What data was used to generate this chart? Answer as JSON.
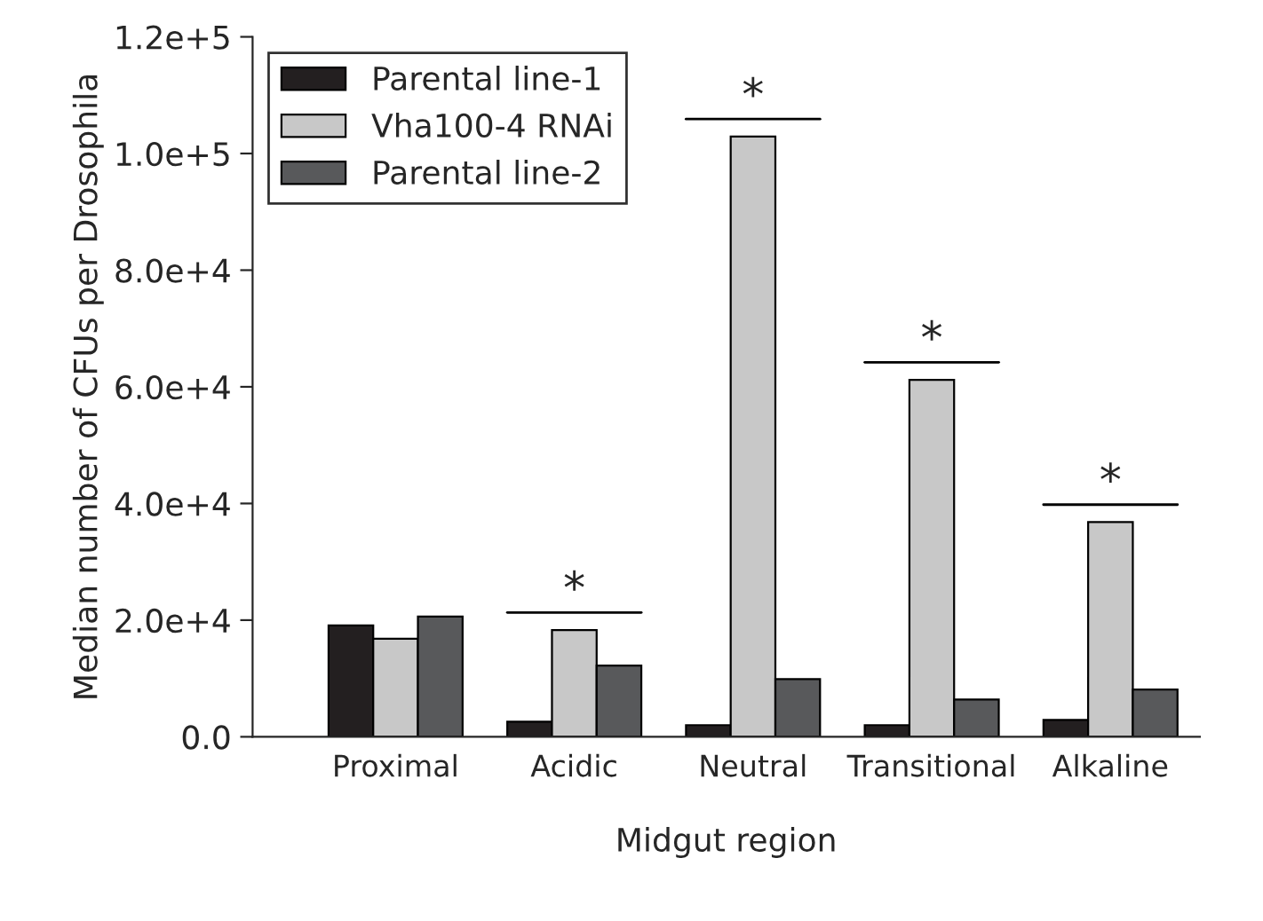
{
  "chart_data": {
    "type": "bar",
    "xlabel": "Midgut region",
    "ylabel": "Median number of CFUs per Drosophila",
    "categories": [
      "Proximal",
      "Acidic",
      "Neutral",
      "Transitional",
      "Alkaline"
    ],
    "series": [
      {
        "name": "Parental line-1",
        "color": "#231f20",
        "values": [
          19100,
          2600,
          2000,
          2000,
          2900
        ]
      },
      {
        "name": "Vha100-4 RNAi",
        "color": "#c8c8c8",
        "values": [
          16800,
          18300,
          102900,
          61200,
          36800
        ]
      },
      {
        "name": "Parental line-2",
        "color": "#58595b",
        "values": [
          20600,
          12200,
          9900,
          6400,
          8100
        ]
      }
    ],
    "ylim": [
      0,
      120000
    ],
    "yticks": [
      {
        "value": 0,
        "label": "0.0"
      },
      {
        "value": 20000,
        "label": "2.0e+4"
      },
      {
        "value": 40000,
        "label": "4.0e+4"
      },
      {
        "value": 60000,
        "label": "6.0e+4"
      },
      {
        "value": 80000,
        "label": "8.0e+4"
      },
      {
        "value": 100000,
        "label": "1.0e+5"
      },
      {
        "value": 120000,
        "label": "1.2e+5"
      }
    ],
    "annotations": [
      "*",
      "*",
      "*",
      "*"
    ],
    "legend": "top left",
    "grid": false
  }
}
